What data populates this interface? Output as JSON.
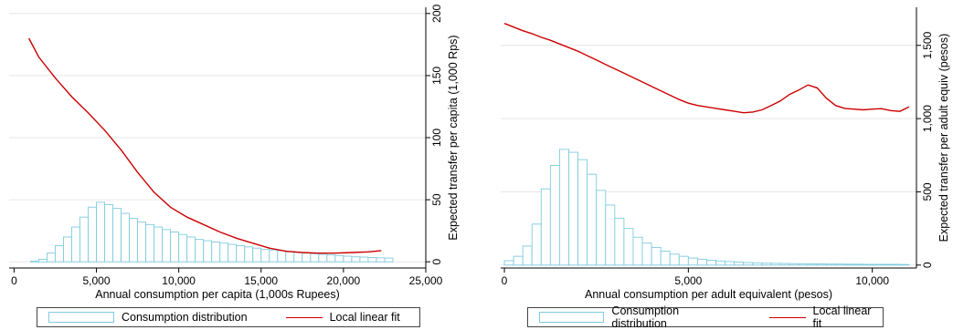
{
  "chart_data": [
    {
      "type": "bar",
      "xlabel": "Annual consumption per capita (1,000s Rupees)",
      "ylabel": "Expected transfer per capita (1,000 Rps)",
      "xlim": [
        -300,
        25000
      ],
      "ylim": [
        -5,
        205
      ],
      "x_ticks": [
        0,
        5000,
        10000,
        15000,
        20000,
        25000
      ],
      "x_tick_labels": [
        "0",
        "5,000",
        "10,000",
        "15,000",
        "20,000",
        "25,000"
      ],
      "y_ticks": [
        0,
        50,
        100,
        150,
        200
      ],
      "y_tick_labels": [
        "0",
        "50",
        "100",
        "150",
        "200"
      ],
      "y_axis_side": "right",
      "grid": true,
      "histogram": {
        "name": "Consumption distribution",
        "bin_start": 1000,
        "bin_width": 500,
        "heights": [
          0.5,
          2,
          7,
          13,
          20,
          28,
          36,
          44,
          48,
          46,
          43,
          39,
          35,
          32,
          30,
          28,
          26,
          24,
          22,
          20,
          18,
          17,
          16,
          15,
          14,
          13,
          12,
          11,
          10,
          9.5,
          9,
          8,
          7.5,
          7,
          6.5,
          6,
          5.5,
          5,
          4.5,
          4,
          3.8,
          3.5,
          3.2,
          3
        ]
      },
      "line": {
        "name": "Local linear fit",
        "x": [
          900,
          1500,
          2500,
          3500,
          4500,
          5500,
          6500,
          7500,
          8500,
          9500,
          10500,
          11500,
          12500,
          13500,
          14500,
          15500,
          16500,
          17500,
          18500,
          19500,
          20500,
          21500,
          22300
        ],
        "y": [
          180,
          165,
          148,
          133,
          120,
          106,
          90,
          72,
          56,
          44,
          36,
          30,
          24,
          19,
          15,
          11,
          8.5,
          7.5,
          7,
          7,
          7.5,
          8,
          9
        ]
      },
      "legend": [
        "Consumption distribution",
        "Local linear fit"
      ],
      "legend_position": "bottom"
    },
    {
      "type": "bar",
      "xlabel": "Annual consumption per adult equivalent (pesos)",
      "ylabel": "Expected transfer per adult equiv (pesos)",
      "xlim": [
        -100,
        11200
      ],
      "ylim": [
        -20,
        1760
      ],
      "x_ticks": [
        0,
        5000,
        10000
      ],
      "x_tick_labels": [
        "0",
        "5,000",
        "10,000"
      ],
      "y_ticks": [
        0,
        500,
        1000,
        1500
      ],
      "y_tick_labels": [
        "0",
        "500",
        "1,000",
        "1,500"
      ],
      "y_axis_side": "right",
      "grid": true,
      "histogram": {
        "name": "Consumption distribution",
        "bin_start": 0,
        "bin_width": 250,
        "heights": [
          30,
          60,
          130,
          280,
          520,
          680,
          790,
          770,
          720,
          620,
          510,
          410,
          320,
          250,
          190,
          150,
          120,
          95,
          75,
          60,
          48,
          40,
          33,
          28,
          24,
          20,
          17,
          15,
          13,
          12,
          11,
          10,
          9,
          8,
          8,
          7,
          7,
          6,
          6,
          5,
          5,
          5,
          5,
          4
        ]
      },
      "line": {
        "name": "Local linear fit",
        "x": [
          0,
          250,
          500,
          750,
          1000,
          1250,
          1500,
          1750,
          2000,
          2250,
          2500,
          2750,
          3000,
          3250,
          3500,
          3750,
          4000,
          4250,
          4500,
          4750,
          5000,
          5250,
          5500,
          5750,
          6000,
          6250,
          6500,
          6750,
          7000,
          7250,
          7500,
          7750,
          8000,
          8250,
          8500,
          8750,
          9000,
          9250,
          9500,
          9750,
          10000,
          10250,
          10500,
          10750,
          11000
        ],
        "y": [
          1650,
          1625,
          1600,
          1580,
          1555,
          1535,
          1510,
          1485,
          1460,
          1430,
          1400,
          1370,
          1340,
          1310,
          1280,
          1250,
          1220,
          1190,
          1160,
          1130,
          1105,
          1090,
          1080,
          1070,
          1060,
          1050,
          1040,
          1045,
          1060,
          1090,
          1120,
          1165,
          1195,
          1230,
          1210,
          1140,
          1090,
          1070,
          1065,
          1060,
          1065,
          1068,
          1055,
          1050,
          1080
        ]
      },
      "legend": [
        "Consumption distribution",
        "Local linear fit"
      ],
      "legend_position": "bottom"
    }
  ]
}
